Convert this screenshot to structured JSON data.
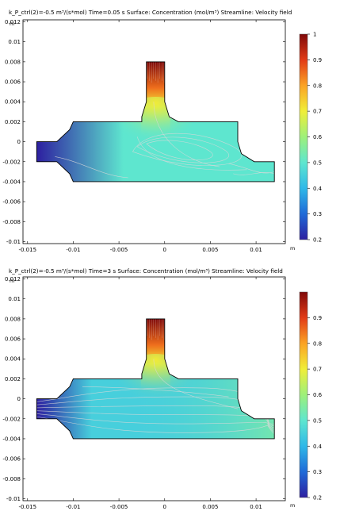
{
  "chart_data": [
    {
      "type": "heatmap",
      "title": "k_P_ctrl(2)=-0.5 m³/(s*mol) Time=0.05 s  Surface: Concentration (mol/m³)  Streamline: Velocity field",
      "xlabel": "m",
      "ylabel": "m",
      "x_ticks": [
        "-0.015",
        "-0.01",
        "-0.005",
        "0",
        "0.005",
        "0.01"
      ],
      "y_ticks": [
        "0.012",
        "0.01",
        "0.008",
        "0.006",
        "0.004",
        "0.002",
        "0",
        "-0.002",
        "-0.004",
        "-0.006",
        "-0.008",
        "-0.01"
      ],
      "xlim": [
        -0.0155,
        0.0132
      ],
      "ylim": [
        -0.0102,
        0.0122
      ],
      "colorbar": {
        "labels": [
          "1",
          "0.9",
          "0.8",
          "0.7",
          "0.6",
          "0.5",
          "0.4",
          "0.3",
          "0.2"
        ],
        "range": [
          0.2,
          1.0
        ],
        "colors": [
          "#2d1fa0",
          "#1f6ad8",
          "#2fb8e8",
          "#5ee6cf",
          "#9ef07a",
          "#f0ee38",
          "#fba324",
          "#e23a16",
          "#7f0909"
        ]
      },
      "geometry_outline_m": [
        [
          -0.014,
          -0.002
        ],
        [
          -0.014,
          0
        ],
        [
          -0.0118,
          0
        ],
        [
          -0.0104,
          0.0012
        ],
        [
          -0.01,
          0.002
        ],
        [
          -0.0025,
          0.002
        ],
        [
          -0.0025,
          0.0025
        ],
        [
          -0.002,
          0.004
        ],
        [
          -0.002,
          0.008
        ],
        [
          0,
          0.008
        ],
        [
          0,
          0.004
        ],
        [
          0.0005,
          0.0025
        ],
        [
          0.0015,
          0.002
        ],
        [
          0.008,
          0.002
        ],
        [
          0.008,
          0
        ],
        [
          0.0084,
          -0.0012
        ],
        [
          0.0098,
          -0.002
        ],
        [
          0.012,
          -0.002
        ],
        [
          0.012,
          -0.004
        ],
        [
          -0.01,
          -0.004
        ],
        [
          -0.0104,
          -0.0032
        ],
        [
          -0.0118,
          -0.002
        ]
      ],
      "field_description": [
        {
          "region": "inlet left",
          "value": 0.2
        },
        {
          "region": "main channel",
          "value": 0.5
        },
        {
          "region": "top inlet",
          "value": 1.0
        },
        {
          "region": "top inlet exit",
          "value": 0.7
        }
      ],
      "streamlines": "recirculation loops under the top inlet and in the right part of the channel",
      "streamline_color": "#d8d8d8"
    },
    {
      "type": "heatmap",
      "title": "k_P_ctrl(2)=-0.5 m³/(s*mol) Time=3 s  Surface: Concentration (mol/m³)  Streamline: Velocity field",
      "xlabel": "m",
      "ylabel": "m",
      "x_ticks": [
        "-0.015",
        "-0.01",
        "-0.005",
        "0",
        "0.005",
        "0.01"
      ],
      "y_ticks": [
        "0.012",
        "0.01",
        "0.008",
        "0.006",
        "0.004",
        "0.002",
        "0",
        "-0.002",
        "-0.004",
        "-0.006",
        "-0.008",
        "-0.01"
      ],
      "xlim": [
        -0.0155,
        0.0132
      ],
      "ylim": [
        -0.0102,
        0.0122
      ],
      "colorbar": {
        "labels": [
          "0.9",
          "0.8",
          "0.7",
          "0.6",
          "0.5",
          "0.4",
          "0.3",
          "0.2"
        ],
        "range": [
          0.2,
          1.0
        ],
        "colors": [
          "#2d1fa0",
          "#1f6ad8",
          "#2fb8e8",
          "#5ee6cf",
          "#9ef07a",
          "#f0ee38",
          "#fba324",
          "#e23a16",
          "#7f0909"
        ]
      },
      "geometry_outline_m": [
        [
          -0.014,
          -0.002
        ],
        [
          -0.014,
          0
        ],
        [
          -0.0118,
          0
        ],
        [
          -0.0104,
          0.0012
        ],
        [
          -0.01,
          0.002
        ],
        [
          -0.0025,
          0.002
        ],
        [
          -0.0025,
          0.0025
        ],
        [
          -0.002,
          0.004
        ],
        [
          -0.002,
          0.008
        ],
        [
          0,
          0.008
        ],
        [
          0,
          0.004
        ],
        [
          0.0005,
          0.0025
        ],
        [
          0.0015,
          0.002
        ],
        [
          0.008,
          0.002
        ],
        [
          0.008,
          0
        ],
        [
          0.0084,
          -0.0012
        ],
        [
          0.0098,
          -0.002
        ],
        [
          0.012,
          -0.002
        ],
        [
          0.012,
          -0.004
        ],
        [
          -0.01,
          -0.004
        ],
        [
          -0.0104,
          -0.0032
        ],
        [
          -0.0118,
          -0.002
        ]
      ],
      "field_description": [
        {
          "region": "inlet left",
          "value": 0.2
        },
        {
          "region": "main channel",
          "value": 0.45
        },
        {
          "region": "top inlet",
          "value": 1.0
        },
        {
          "region": "top inlet exit",
          "value": 0.7
        }
      ],
      "streamlines": "near-parallel flow from the left inlet toward the right outlet",
      "streamline_color": "#d8d8d8"
    }
  ]
}
